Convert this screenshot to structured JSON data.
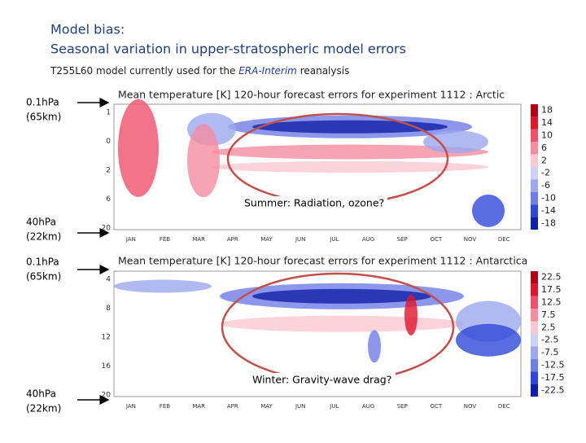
{
  "header": {
    "title": "Model bias:",
    "subtitle": "Seasonal variation in upper-stratospheric model errors",
    "note": {
      "before": "T255L60 model currently used for the ",
      "emphasis": "ERA-Interim",
      "after": " reanalysis"
    }
  },
  "plots": [
    {
      "top_label": [
        "0.1hPa",
        "(65km)"
      ],
      "bottom_label": [
        "40hPa",
        "(22km)"
      ],
      "title": "Mean temperature [K] 120-hour forecast errors for experiment 1112 : Arctic",
      "yaxis": [
        "1",
        "0",
        "2",
        "6",
        "20"
      ],
      "months": [
        "JAN",
        "FEB",
        "MAR",
        "APR",
        "MAY",
        "JUN",
        "JUL",
        "AUG",
        "SEP",
        "OCT",
        "NOV",
        "DEC"
      ],
      "colorbar": [
        18,
        14,
        10,
        6,
        2,
        -2,
        -6,
        -10,
        -14,
        -18
      ],
      "annotation": "Summer: Radiation, ozone?"
    },
    {
      "top_label": [
        "0.1hPa",
        "(65km)"
      ],
      "bottom_label": [
        "40hPa",
        "(22km)"
      ],
      "title": "Mean temperature [K] 120-hour forecast errors for experiment 1112 : Antarctica",
      "yaxis": [
        "4",
        "8",
        "12",
        "16",
        "20"
      ],
      "months": [
        "JAN",
        "FEB",
        "MAR",
        "APR",
        "MAY",
        "JUN",
        "JUL",
        "AUG",
        "SEP",
        "OCT",
        "NOV",
        "DEC"
      ],
      "colorbar": [
        22.5,
        17.5,
        12.5,
        7.5,
        2.5,
        -2.5,
        -7.5,
        -12.5,
        -17.5,
        -22.5
      ],
      "annotation": "Winter: Gravity-wave drag?"
    }
  ]
}
